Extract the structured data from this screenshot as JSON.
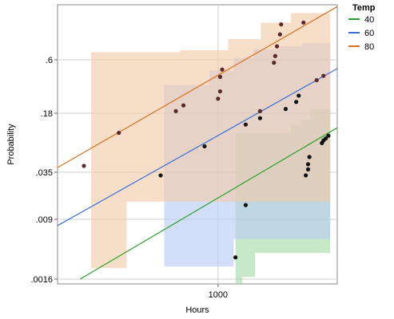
{
  "chart_data": {
    "type": "scatter",
    "title": "",
    "xlabel": "Hours",
    "ylabel": "Probability",
    "x_scale": "log",
    "y_scale": "probability",
    "xlim": [
      218,
      3100
    ],
    "x_ticks": [
      {
        "value": 1000,
        "label": "1000"
      }
    ],
    "y_ticks": [
      {
        "value": 0.0016,
        "label": ".0016"
      },
      {
        "value": 0.009,
        "label": ".009"
      },
      {
        "value": 0.035,
        "label": ".035"
      },
      {
        "value": 0.18,
        "label": ".18"
      },
      {
        "value": 0.6,
        "label": ".6"
      }
    ],
    "grid": true,
    "legend": {
      "title": "Temp",
      "placement": "right"
    },
    "series": [
      {
        "name": "40",
        "color": "#2ca02c",
        "band_color": "#a6dba6",
        "points": [
          [
            1300,
            0.0136
          ],
          [
            1180,
            0.003
          ],
          [
            2300,
            0.032
          ],
          [
            2350,
            0.044
          ],
          [
            2350,
            0.038
          ],
          [
            2380,
            0.054
          ],
          [
            2680,
            0.08
          ],
          [
            2720,
            0.086
          ],
          [
            2780,
            0.091
          ],
          [
            2850,
            0.098
          ]
        ],
        "fit_line": [
          [
            270,
            0.0016
          ],
          [
            3100,
            0.122
          ]
        ],
        "band": [
          [
            1180,
            0.00065,
            0.105
          ],
          [
            1260,
            0.0017,
            0.105
          ],
          [
            1400,
            0.0017,
            0.105
          ],
          [
            1420,
            0.0034,
            0.105
          ],
          [
            2000,
            0.0034,
            0.13
          ],
          [
            2200,
            0.0034,
            0.15
          ],
          [
            2400,
            0.0034,
            0.2
          ],
          [
            2900,
            0.0034,
            0.2
          ]
        ]
      },
      {
        "name": "60",
        "color": "#3a6fd8",
        "band_color": "#b8ccf4",
        "points": [
          [
            580,
            0.032
          ],
          [
            880,
            0.073
          ],
          [
            1300,
            0.133
          ],
          [
            1490,
            0.158
          ],
          [
            1900,
            0.201
          ],
          [
            2100,
            0.24
          ],
          [
            2150,
            0.28
          ]
        ],
        "fit_line": [
          [
            218,
            0.0075
          ],
          [
            3100,
            0.51
          ]
        ],
        "band": [
          [
            600,
            0.0023,
            0.36
          ],
          [
            900,
            0.0023,
            0.36
          ],
          [
            920,
            0.0023,
            0.49
          ],
          [
            1160,
            0.0051,
            0.62
          ],
          [
            1400,
            0.0051,
            0.71
          ],
          [
            1800,
            0.0051,
            0.74
          ],
          [
            2200,
            0.0051,
            0.77
          ],
          [
            2900,
            0.0051,
            0.78
          ]
        ]
      },
      {
        "name": "80",
        "color": "#d9701f",
        "band_color": "#f2c9a8",
        "points": [
          [
            280,
            0.042
          ],
          [
            390,
            0.106
          ],
          [
            670,
            0.19
          ],
          [
            720,
            0.22
          ],
          [
            1000,
            0.26
          ],
          [
            1020,
            0.31
          ],
          [
            1020,
            0.43
          ],
          [
            1040,
            0.5
          ],
          [
            1490,
            0.19
          ],
          [
            1700,
            0.57
          ],
          [
            1720,
            0.64
          ],
          [
            1750,
            0.74
          ],
          [
            1800,
            0.85
          ],
          [
            1820,
            0.92
          ],
          [
            2250,
            0.93
          ],
          [
            2550,
            0.4
          ],
          [
            2720,
            0.44
          ]
        ],
        "fit_line": [
          [
            218,
            0.04
          ],
          [
            3100,
            0.985
          ]
        ],
        "band": [
          [
            300,
            0.0022,
            0.68
          ],
          [
            420,
            0.015,
            0.68
          ],
          [
            640,
            0.015,
            0.68
          ],
          [
            700,
            0.015,
            0.7
          ],
          [
            1100,
            0.015,
            0.81
          ],
          [
            1500,
            0.015,
            0.93
          ],
          [
            2000,
            0.015,
            0.97
          ],
          [
            2900,
            0.015,
            0.985
          ]
        ]
      }
    ]
  }
}
